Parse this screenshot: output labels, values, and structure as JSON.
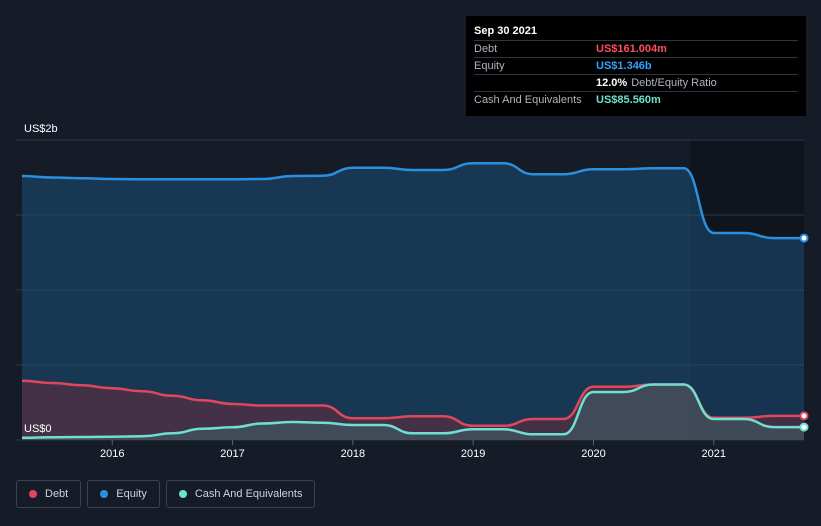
{
  "chart_data": {
    "type": "area",
    "y_axis_labels": {
      "top": "US$2b",
      "bottom": "US$0"
    },
    "ylim": [
      0,
      2000
    ],
    "xlim": [
      2015.2,
      2021.75
    ],
    "x_ticks": [
      "2016",
      "2017",
      "2018",
      "2019",
      "2020",
      "2021"
    ],
    "x_tick_values": [
      2016,
      2017,
      2018,
      2019,
      2020,
      2021
    ],
    "grid": true,
    "series": [
      {
        "name": "Equity",
        "color": "#2b8fe0",
        "x": [
          2015.25,
          2015.5,
          2015.75,
          2016.0,
          2016.25,
          2016.5,
          2016.75,
          2017.0,
          2017.25,
          2017.5,
          2017.75,
          2018.0,
          2018.25,
          2018.5,
          2018.75,
          2019.0,
          2019.25,
          2019.5,
          2019.75,
          2020.0,
          2020.25,
          2020.5,
          2020.75,
          2021.0,
          2021.25,
          2021.5,
          2021.75
        ],
        "values": [
          1760,
          1750,
          1745,
          1740,
          1738,
          1738,
          1738,
          1738,
          1740,
          1760,
          1762,
          1815,
          1815,
          1800,
          1800,
          1845,
          1845,
          1772,
          1772,
          1805,
          1805,
          1812,
          1812,
          1380,
          1380,
          1346,
          1346
        ]
      },
      {
        "name": "Debt",
        "color": "#e0475b",
        "x": [
          2015.25,
          2015.5,
          2015.75,
          2016.0,
          2016.25,
          2016.5,
          2016.75,
          2017.0,
          2017.25,
          2017.5,
          2017.75,
          2018.0,
          2018.25,
          2018.5,
          2018.75,
          2019.0,
          2019.25,
          2019.5,
          2019.75,
          2020.0,
          2020.25,
          2020.5,
          2020.75,
          2021.0,
          2021.25,
          2021.5,
          2021.75
        ],
        "values": [
          395,
          380,
          365,
          345,
          325,
          295,
          265,
          240,
          230,
          230,
          230,
          145,
          145,
          158,
          158,
          95,
          95,
          140,
          140,
          355,
          355,
          370,
          370,
          148,
          148,
          161,
          161
        ]
      },
      {
        "name": "Cash And Equivalents",
        "color": "#6ee0d0",
        "x": [
          2015.25,
          2015.5,
          2015.75,
          2016.0,
          2016.25,
          2016.5,
          2016.75,
          2017.0,
          2017.25,
          2017.5,
          2017.75,
          2018.0,
          2018.25,
          2018.5,
          2018.75,
          2019.0,
          2019.25,
          2019.5,
          2019.75,
          2020.0,
          2020.25,
          2020.5,
          2020.75,
          2021.0,
          2021.25,
          2021.5,
          2021.75
        ],
        "values": [
          15,
          18,
          20,
          22,
          25,
          45,
          75,
          85,
          110,
          120,
          115,
          100,
          100,
          45,
          45,
          72,
          72,
          38,
          38,
          320,
          320,
          370,
          370,
          140,
          140,
          86,
          86
        ]
      }
    ]
  },
  "tooltip": {
    "date": "Sep 30 2021",
    "rows": [
      {
        "label": "Debt",
        "value": "US$161.004m",
        "color": "#ff4d5e"
      },
      {
        "label": "Equity",
        "value": "US$1.346b",
        "color": "#33a3ff"
      },
      {
        "label": "",
        "value": "12.0%",
        "sub": "Debt/Equity Ratio",
        "color": "#ffffff"
      },
      {
        "label": "Cash And Equivalents",
        "value": "US$85.560m",
        "color": "#6ee0d0"
      }
    ]
  },
  "legend": [
    {
      "label": "Debt",
      "color": "#e0475b"
    },
    {
      "label": "Equity",
      "color": "#2b8fe0"
    },
    {
      "label": "Cash And Equivalents",
      "color": "#6ee0d0"
    }
  ]
}
